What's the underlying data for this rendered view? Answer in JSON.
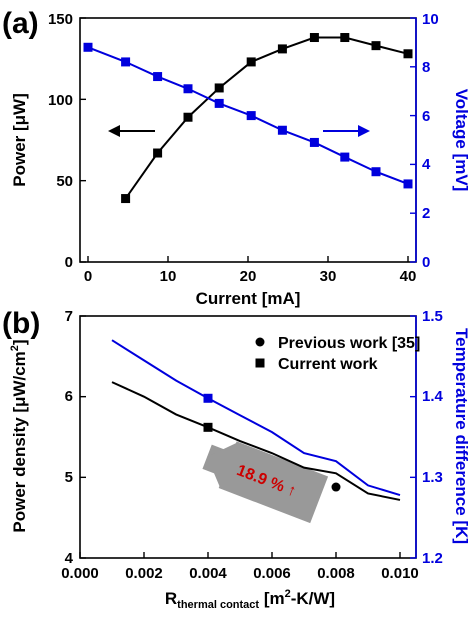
{
  "chart_data": [
    {
      "type": "line",
      "panel_label": "(a)",
      "xlabel": "Current [mA]",
      "ylabel_left": "Power [μW]",
      "ylabel_right": "Voltage [mV]",
      "xlim": [
        -1,
        41
      ],
      "ylim_left": [
        0,
        150
      ],
      "ylim_right": [
        0,
        10
      ],
      "x_ticks": [
        "0",
        "10",
        "20",
        "30",
        "40"
      ],
      "y_left_ticks": [
        "0",
        "50",
        "100",
        "150"
      ],
      "y_right_ticks": [
        "0",
        "2",
        "4",
        "6",
        "8",
        "10"
      ],
      "colors": {
        "left_axis": "#000000",
        "right_axis": "#0000dd"
      },
      "series": [
        {
          "axis": "left",
          "marker": "square",
          "color": "#000000",
          "x": [
            4.7,
            8.7,
            12.5,
            16.4,
            20.4,
            24.3,
            28.3,
            32.1,
            36.0,
            40.0
          ],
          "y": [
            39,
            67,
            89,
            107,
            123,
            131,
            138,
            138,
            133,
            128
          ]
        },
        {
          "axis": "right",
          "marker": "square",
          "color": "#0000dd",
          "x": [
            0,
            4.7,
            8.7,
            12.5,
            16.4,
            20.4,
            24.3,
            28.3,
            32.1,
            36.0,
            40.0
          ],
          "y": [
            8.8,
            8.2,
            7.6,
            7.1,
            6.5,
            6.0,
            5.4,
            4.9,
            4.3,
            3.7,
            3.2
          ]
        }
      ],
      "arrows": [
        {
          "points_to": "left",
          "color": "#000000"
        },
        {
          "points_to": "right",
          "color": "#0000dd"
        }
      ]
    },
    {
      "type": "line",
      "panel_label": "(b)",
      "xlabel_main": "R",
      "xlabel_sub": "thermal contact",
      "xlabel_unit_a": " [m",
      "xlabel_unit_sup": "2",
      "xlabel_unit_b": "-K/W]",
      "ylabel_left_main": "Power density [μW/cm",
      "ylabel_left_sup": "2",
      "ylabel_left_end": "]",
      "ylabel_right": "Temperature difference [K]",
      "xlim": [
        0,
        0.0105
      ],
      "ylim_left": [
        4,
        7
      ],
      "ylim_right": [
        1.2,
        1.5
      ],
      "x_ticks": [
        "0.000",
        "0.002",
        "0.004",
        "0.006",
        "0.008",
        "0.010"
      ],
      "y_left_ticks": [
        "4",
        "5",
        "6",
        "7"
      ],
      "y_right_ticks": [
        "1.2",
        "1.3",
        "1.4",
        "1.5"
      ],
      "colors": {
        "left_axis": "#000000",
        "right_axis": "#0000dd",
        "arrow": "#999999",
        "annotation": "#cc0000"
      },
      "legend": {
        "placement": "top-right",
        "entries": [
          {
            "label": "Previous work [35]",
            "marker": "circle"
          },
          {
            "label": "Current work",
            "marker": "square"
          }
        ]
      },
      "annotation": "18.9 % ↑",
      "series": [
        {
          "axis": "left",
          "color": "#000000",
          "x": [
            0.001,
            0.002,
            0.003,
            0.004,
            0.005,
            0.006,
            0.007,
            0.008,
            0.009,
            0.01
          ],
          "y": [
            6.18,
            6.0,
            5.78,
            5.62,
            5.45,
            5.3,
            5.12,
            5.05,
            4.8,
            4.72
          ]
        },
        {
          "axis": "right",
          "color": "#0000dd",
          "x": [
            0.001,
            0.002,
            0.003,
            0.004,
            0.005,
            0.006,
            0.007,
            0.008,
            0.009,
            0.01
          ],
          "y": [
            1.47,
            1.445,
            1.42,
            1.398,
            1.377,
            1.356,
            1.33,
            1.32,
            1.29,
            1.278
          ]
        }
      ],
      "points": [
        {
          "label": "Previous work [35]",
          "marker": "circle",
          "x": 0.008,
          "y": 4.88
        },
        {
          "label": "Current work",
          "marker": "square",
          "x": 0.004,
          "y": 5.62
        },
        {
          "label": "Current work",
          "marker": "square",
          "x": 0.004,
          "y_right": 1.398
        }
      ]
    }
  ]
}
